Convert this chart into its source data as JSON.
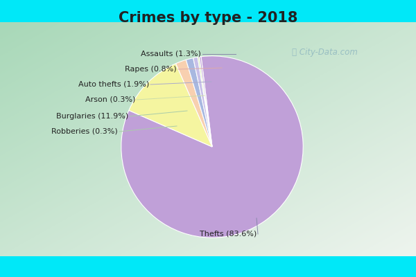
{
  "title": "Crimes by type - 2018",
  "slices": [
    {
      "label": "Thefts",
      "pct": 83.6,
      "color": "#c0a0d8",
      "display": "Thefts (83.6%)",
      "side": "bottom"
    },
    {
      "label": "Burglaries",
      "pct": 11.9,
      "color": "#f5f5a0",
      "display": "Burglaries (11.9%)",
      "side": "left"
    },
    {
      "label": "Auto thefts",
      "pct": 1.9,
      "color": "#f8d0b0",
      "display": "Auto thefts (1.9%)",
      "side": "left"
    },
    {
      "label": "Assaults",
      "pct": 1.3,
      "color": "#a8b8e0",
      "display": "Assaults (1.3%)",
      "side": "top"
    },
    {
      "label": "Rapes",
      "pct": 0.8,
      "color": "#c8c0e8",
      "display": "Rapes (0.8%)",
      "side": "left"
    },
    {
      "label": "Arson",
      "pct": 0.3,
      "color": "#d8ecb8",
      "display": "Arson (0.3%)",
      "side": "left"
    },
    {
      "label": "Robberies",
      "pct": 0.3,
      "color": "#c0a0d8",
      "display": "Robberies (0.3%)",
      "side": "left"
    }
  ],
  "cyan_border_color": "#00e8f8",
  "bg_color_tl": "#a8d8b8",
  "bg_color_br": "#e8f0e8",
  "title_fontsize": 15,
  "title_color": "#222222",
  "label_fontsize": 8,
  "watermark_text": "City-Data.com",
  "watermark_color": "#90b8c0"
}
